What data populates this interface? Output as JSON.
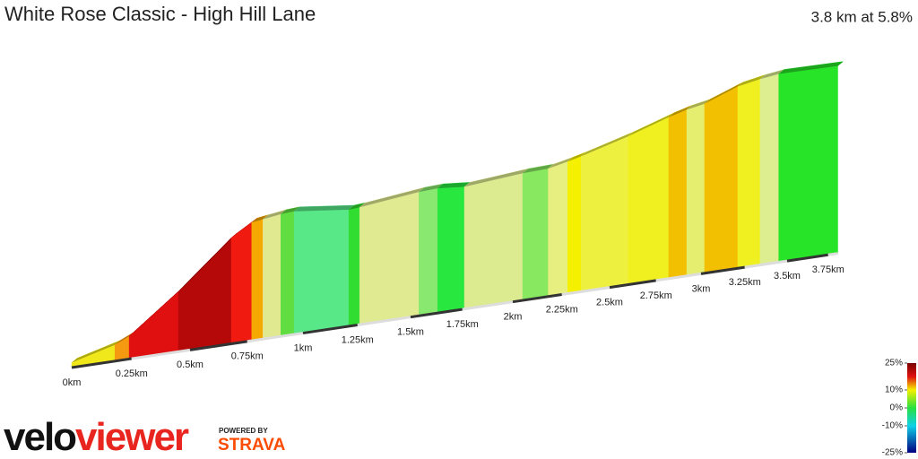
{
  "chart_data": {
    "type": "profile",
    "title": "White Rose Classic - High Hill Lane",
    "subtitle": "3.8 km at 5.8%",
    "x": [
      0,
      0.18,
      0.24,
      0.45,
      0.68,
      0.77,
      0.82,
      0.9,
      0.96,
      1.21,
      1.26,
      1.54,
      1.63,
      1.76,
      2.05,
      2.18,
      2.28,
      2.35,
      2.6,
      2.82,
      2.92,
      3.02,
      3.21,
      3.34,
      3.45,
      3.81
    ],
    "values": [
      6,
      20,
      28,
      74,
      130,
      145,
      147,
      150,
      151,
      143,
      144,
      152,
      153,
      150,
      156,
      157,
      162,
      166,
      182,
      198,
      204,
      208,
      223,
      228,
      231,
      230
    ],
    "segment_colors": [
      "#f0e81a",
      "#f59a10",
      "#e01010",
      "#b50808",
      "#f01a10",
      "#f5a800",
      "#e0e890",
      "#60dd40",
      "#58e888",
      "#30dd30",
      "#e0ea90",
      "#88e870",
      "#28e840",
      "#dceb90",
      "#88e860",
      "#e6ef80",
      "#f5f000",
      "#eef040",
      "#f0f020",
      "#f2c000",
      "#e6ee70",
      "#f2c000",
      "#f0f020",
      "#dcee90",
      "#28e428"
    ],
    "xticks": [
      {
        "value": 0,
        "label": "0km"
      },
      {
        "value": 0.25,
        "label": "0.25km"
      },
      {
        "value": 0.5,
        "label": "0.5km"
      },
      {
        "value": 0.75,
        "label": "0.75km"
      },
      {
        "value": 1,
        "label": "1km"
      },
      {
        "value": 1.25,
        "label": "1.25km"
      },
      {
        "value": 1.5,
        "label": "1.5km"
      },
      {
        "value": 1.75,
        "label": "1.75km"
      },
      {
        "value": 2,
        "label": "2km"
      },
      {
        "value": 2.25,
        "label": "2.25km"
      },
      {
        "value": 2.5,
        "label": "2.5km"
      },
      {
        "value": 2.75,
        "label": "2.75km"
      },
      {
        "value": 3,
        "label": "3km"
      },
      {
        "value": 3.25,
        "label": "3.25km"
      },
      {
        "value": 3.5,
        "label": "3.5km"
      },
      {
        "value": 3.75,
        "label": "3.75km"
      }
    ],
    "colorbar": {
      "lim": [
        -25,
        25
      ],
      "ticks": [
        {
          "value": 25,
          "label": "25%"
        },
        {
          "value": 10,
          "label": "10%"
        },
        {
          "value": 0,
          "label": "0%"
        },
        {
          "value": -10,
          "label": "-10%"
        },
        {
          "value": -25,
          "label": "-25%"
        }
      ]
    }
  },
  "branding": {
    "velo": "velo",
    "viewer": "viewer",
    "powered": "POWERED BY",
    "strava": "STRAVA"
  }
}
